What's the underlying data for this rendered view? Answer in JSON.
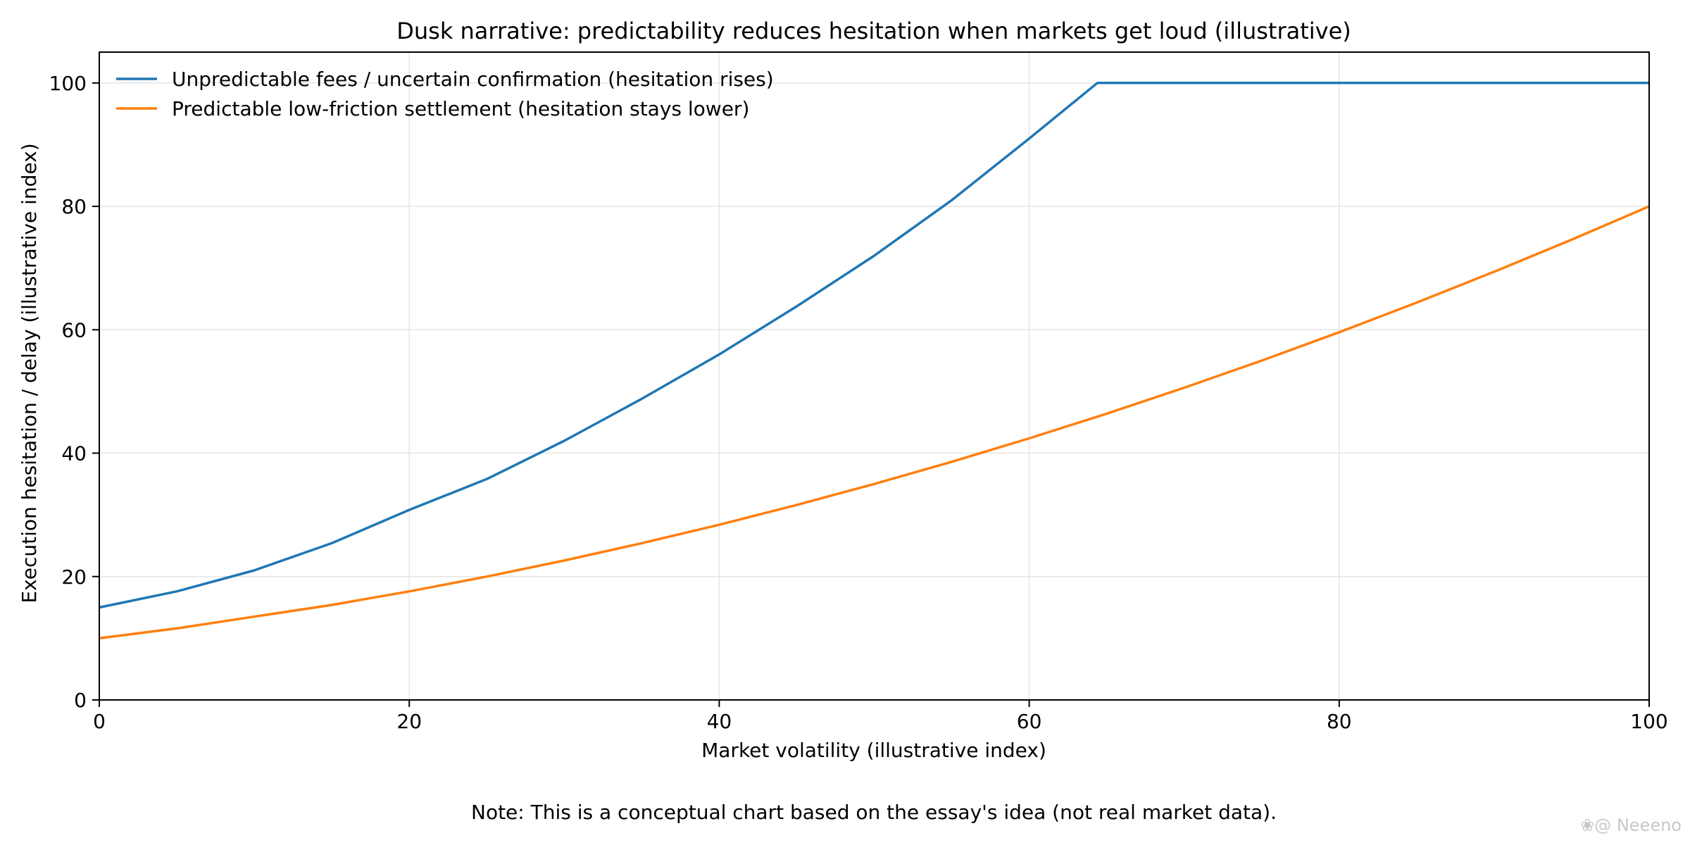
{
  "chart_data": {
    "type": "line",
    "title": "Dusk narrative: predictability reduces hesitation when markets get loud (illustrative)",
    "xlabel": "Market volatility (illustrative index)",
    "ylabel": "Execution hesitation / delay (illustrative index)",
    "xlim": [
      0,
      100
    ],
    "ylim": [
      0,
      105
    ],
    "xticks": [
      0,
      20,
      40,
      60,
      80,
      100
    ],
    "yticks": [
      0,
      20,
      40,
      60,
      80,
      100
    ],
    "grid": true,
    "legend_position": "top-left",
    "note": "Note: This is a conceptual chart based on the essay's idea (not real market data).",
    "series": [
      {
        "name": "Unpredictable fees / uncertain confirmation (hesitation rises)",
        "color": "#1f77b4",
        "x": [
          0,
          5,
          10,
          15,
          20,
          25,
          30,
          35,
          40,
          45,
          50,
          55,
          60,
          64.4,
          70,
          75,
          80,
          85,
          90,
          95,
          100
        ],
        "y": [
          15,
          17.6,
          21,
          25.4,
          30.8,
          35.8,
          42,
          48.8,
          56,
          63.8,
          72,
          81,
          91,
          100,
          100,
          100,
          100,
          100,
          100,
          100,
          100
        ]
      },
      {
        "name": "Predictable low-friction settlement (hesitation stays lower)",
        "color": "#ff7f0e",
        "x": [
          0,
          5,
          10,
          15,
          20,
          25,
          30,
          35,
          40,
          45,
          50,
          55,
          60,
          65,
          70,
          75,
          80,
          85,
          90,
          95,
          100
        ],
        "y": [
          10,
          11.6,
          13.5,
          15.4,
          17.6,
          20,
          22.6,
          25.4,
          28.4,
          31.6,
          35,
          38.6,
          42.4,
          46.4,
          50.6,
          55,
          59.6,
          64.4,
          69.4,
          74.6,
          80
        ]
      }
    ]
  },
  "watermark": "❀@ Neeeno"
}
